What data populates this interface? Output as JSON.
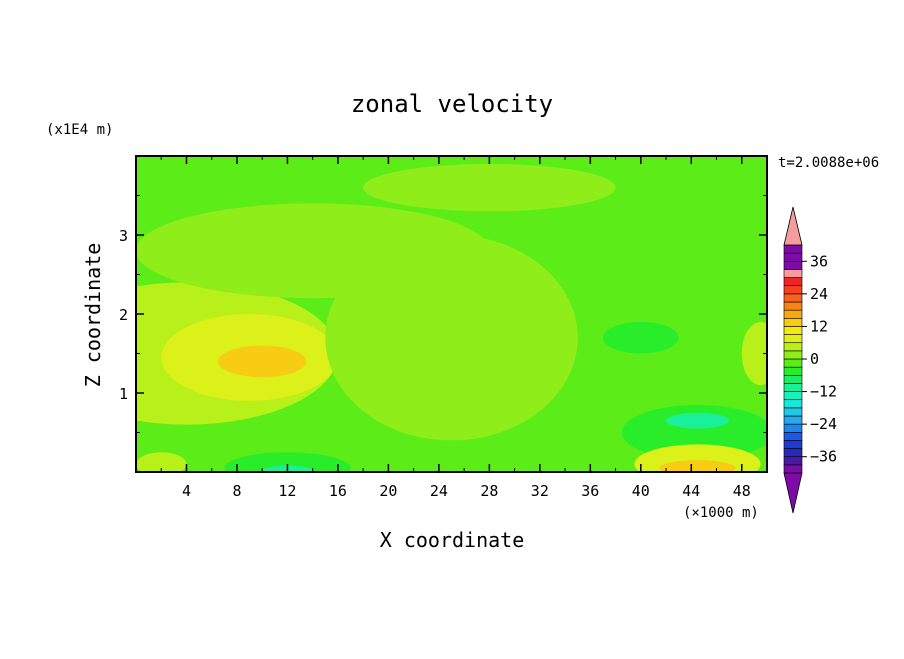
{
  "chart_data": {
    "type": "heatmap",
    "title": "zonal velocity",
    "xlabel": "X coordinate",
    "ylabel": "Z coordinate",
    "x_unit_label": "(×1000 m)",
    "y_unit_label": "(x1E4 m)",
    "time_label": "t=2.0088e+06",
    "x_ticks": [
      "4",
      "8",
      "12",
      "16",
      "20",
      "24",
      "28",
      "32",
      "36",
      "40",
      "44",
      "48"
    ],
    "y_ticks": [
      "1",
      "2",
      "3"
    ],
    "xlim": [
      0,
      50
    ],
    "ylim": [
      0,
      4
    ],
    "colorbar": {
      "levels": [
        -42,
        -39,
        -36,
        -33,
        -30,
        -27,
        -24,
        -21,
        -18,
        -15,
        -12,
        -9,
        -6,
        -3,
        0,
        3,
        6,
        9,
        12,
        15,
        18,
        21,
        24,
        27,
        30,
        33,
        36,
        39,
        42
      ],
      "tick_labels": [
        "36",
        "24",
        "12",
        "0",
        "−12",
        "−24",
        "−36"
      ],
      "tick_values": [
        36,
        24,
        12,
        0,
        -12,
        -24,
        -36
      ],
      "colors": [
        "#7e0aa8",
        "#4a1aa5",
        "#2929b8",
        "#1d3ad6",
        "#1a5ae8",
        "#1f86ee",
        "#25a8ec",
        "#21c8e8",
        "#19e8d8",
        "#19f0c0",
        "#19f097",
        "#19ee6a",
        "#2aed2a",
        "#5ced19",
        "#8fee19",
        "#b8f019",
        "#dcf019",
        "#f5ea10",
        "#f8cc12",
        "#f8a814",
        "#f88418",
        "#f8621c",
        "#f64020",
        "#ef2424",
        "#f59c9c"
      ]
    },
    "background_value": -3,
    "blobs": [
      {
        "x": 4,
        "y": 1.5,
        "rx": 12,
        "ry": 0.9,
        "value": 5
      },
      {
        "x": 9,
        "y": 1.45,
        "rx": 7,
        "ry": 0.55,
        "value": 8
      },
      {
        "x": 10,
        "y": 1.4,
        "rx": 3.5,
        "ry": 0.2,
        "value": 12
      },
      {
        "x": 14,
        "y": 2.8,
        "rx": 14,
        "ry": 0.6,
        "value": 1
      },
      {
        "x": 25,
        "y": 1.7,
        "rx": 10,
        "ry": 1.3,
        "value": 1
      },
      {
        "x": 28,
        "y": 3.6,
        "rx": 10,
        "ry": 0.3,
        "value": 1
      },
      {
        "x": 2,
        "y": 0.1,
        "rx": 2,
        "ry": 0.15,
        "value": 4
      },
      {
        "x": 44.5,
        "y": 0.5,
        "rx": 6,
        "ry": 0.35,
        "value": -6
      },
      {
        "x": 44.5,
        "y": 0.65,
        "rx": 2.5,
        "ry": 0.1,
        "value": -12
      },
      {
        "x": 44.5,
        "y": 0.1,
        "rx": 5,
        "ry": 0.25,
        "value": 6
      },
      {
        "x": 44.5,
        "y": 0.05,
        "rx": 3,
        "ry": 0.1,
        "value": 12
      },
      {
        "x": 12,
        "y": 0.05,
        "rx": 5,
        "ry": 0.2,
        "value": -6
      },
      {
        "x": 12,
        "y": 0.02,
        "rx": 2,
        "ry": 0.06,
        "value": -12
      },
      {
        "x": 40,
        "y": 1.7,
        "rx": 3,
        "ry": 0.2,
        "value": -6
      },
      {
        "x": 49.5,
        "y": 1.5,
        "rx": 1.5,
        "ry": 0.4,
        "value": 4
      }
    ]
  }
}
